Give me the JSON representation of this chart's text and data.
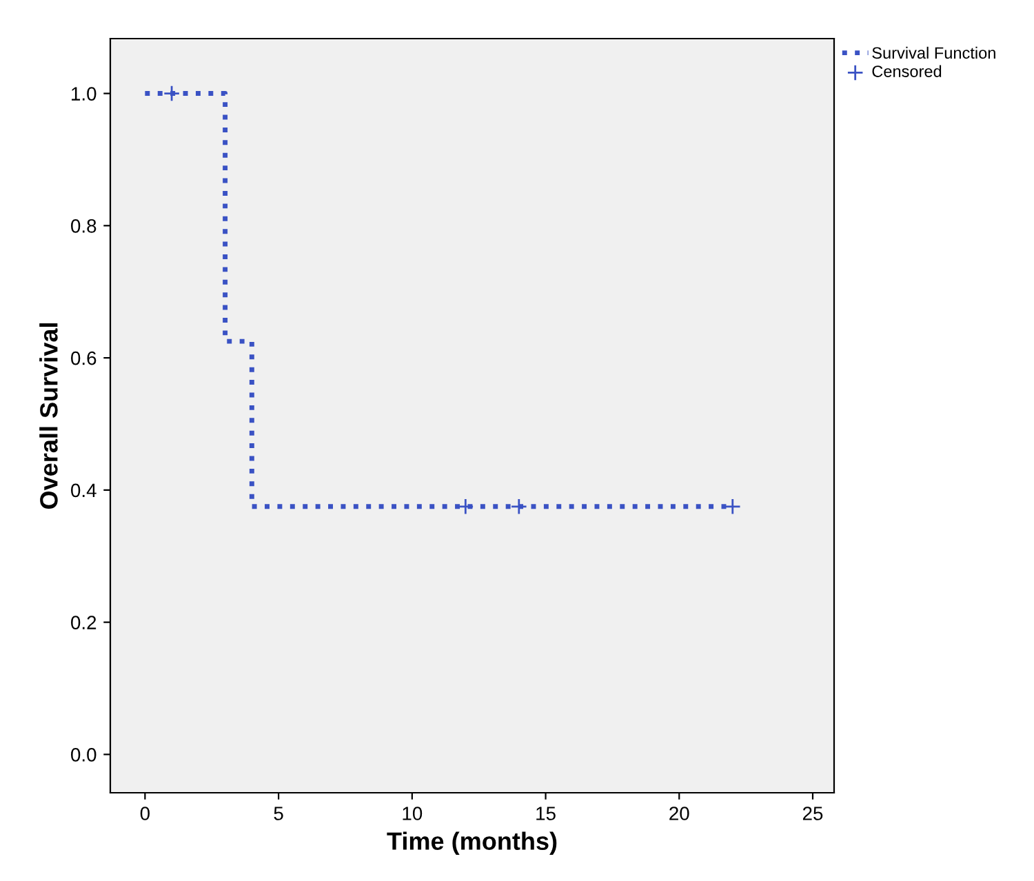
{
  "chart_data": {
    "type": "step",
    "xlabel": "Time (months)",
    "ylabel": "Overall Survival",
    "xlim": [
      -1.3,
      25.8
    ],
    "ylim": [
      -0.058,
      1.083
    ],
    "xticks": [
      0,
      5,
      10,
      15,
      20,
      25
    ],
    "yticks": [
      {
        "value": 0,
        "label": "0.0"
      },
      {
        "value": 0.2,
        "label": "0.2"
      },
      {
        "value": 0.4,
        "label": "0.4"
      },
      {
        "value": 0.6,
        "label": "0.6"
      },
      {
        "value": 0.8,
        "label": "0.8"
      },
      {
        "value": 1,
        "label": "1.0"
      }
    ],
    "grid": false,
    "legend": "top right",
    "series": [
      {
        "name": "Survival Function",
        "color": "#3a52c4",
        "line_style": "dotted",
        "marker": "none",
        "x": [
          0,
          3,
          3,
          4,
          4,
          22
        ],
        "values": [
          1,
          1,
          0.625,
          0.625,
          0.375,
          0.375
        ]
      },
      {
        "name": "Censored",
        "type": "scatter",
        "color": "#3a52c4",
        "marker": "cross",
        "x": [
          1,
          12,
          14,
          22
        ],
        "values": [
          1,
          0.375,
          0.375,
          0.375
        ]
      }
    ]
  }
}
